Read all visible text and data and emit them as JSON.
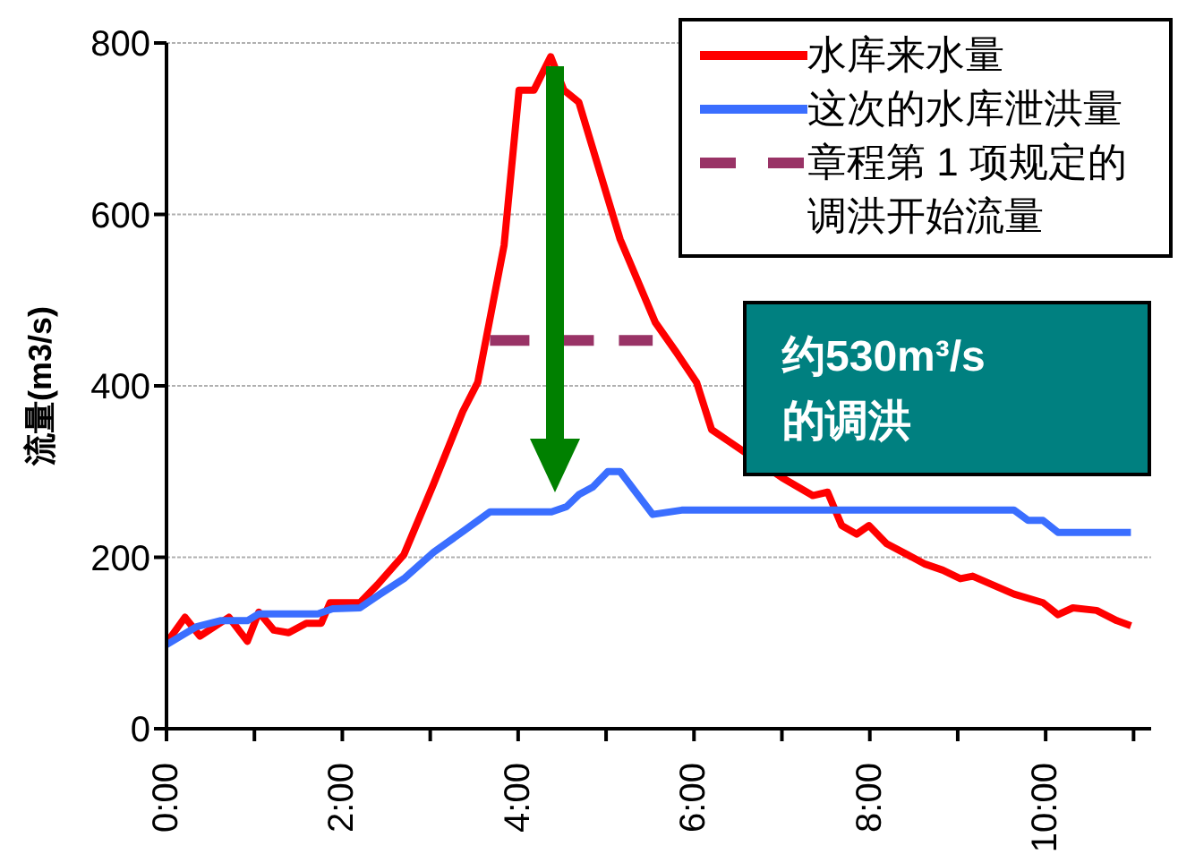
{
  "chart_data": {
    "type": "line",
    "ylabel": "流量(m3/s)",
    "xlim": [
      0,
      11.2
    ],
    "xticks": [
      {
        "value": 0,
        "label": "0:00"
      },
      {
        "value": 1,
        "label": null
      },
      {
        "value": 2,
        "label": "2:00"
      },
      {
        "value": 3,
        "label": null
      },
      {
        "value": 4,
        "label": "4:00"
      },
      {
        "value": 5,
        "label": null
      },
      {
        "value": 6,
        "label": "6:00"
      },
      {
        "value": 7,
        "label": null
      },
      {
        "value": 8,
        "label": "8:00"
      },
      {
        "value": 9,
        "label": null
      },
      {
        "value": 10,
        "label": "10:00"
      },
      {
        "value": 11,
        "label": null
      }
    ],
    "ylim": [
      0,
      800
    ],
    "yticks": [
      0,
      200,
      400,
      600,
      800
    ],
    "grid": "y",
    "legend": "top right",
    "marker": "none",
    "series": [
      {
        "name": "水库来水量",
        "color": "#ff0000",
        "x": [
          0,
          0.21,
          0.38,
          0.71,
          0.92,
          1.05,
          1.22,
          1.39,
          1.59,
          1.76,
          1.86,
          2.2,
          2.4,
          2.7,
          3.04,
          3.37,
          3.54,
          3.84,
          4.01,
          4.18,
          4.37,
          4.52,
          4.69,
          5.16,
          5.56,
          5.8,
          6.03,
          6.2,
          6.4,
          7.0,
          7.35,
          7.52,
          7.68,
          7.85,
          7.99,
          8.19,
          8.63,
          8.83,
          9.03,
          9.17,
          9.64,
          9.97,
          10.14,
          10.31,
          10.58,
          10.81,
          10.97
        ],
        "values": [
          100,
          130,
          108,
          130,
          102,
          136,
          115,
          112,
          123,
          123,
          147,
          147,
          168,
          203,
          286,
          370,
          404,
          564,
          745,
          745,
          784,
          745,
          731,
          571,
          474,
          439,
          404,
          349,
          335,
          293,
          272,
          276,
          237,
          227,
          237,
          216,
          192,
          185,
          175,
          178,
          157,
          147,
          133,
          141,
          138,
          126,
          120
        ]
      },
      {
        "name": "这次的水库泄洪量",
        "color": "#3a6eff",
        "x": [
          0,
          0.34,
          0.61,
          0.92,
          1.05,
          1.72,
          1.89,
          2.2,
          2.43,
          2.7,
          3.04,
          3.37,
          3.68,
          4.38,
          4.55,
          4.69,
          4.85,
          5.02,
          5.16,
          5.53,
          5.86,
          9.64,
          9.8,
          9.97,
          10.14,
          10.97
        ],
        "values": [
          98,
          119,
          126,
          126,
          134,
          134,
          140,
          141,
          157,
          175,
          206,
          230,
          253,
          253,
          259,
          273,
          282,
          300,
          300,
          250,
          255,
          255,
          243,
          243,
          229,
          229
        ]
      },
      {
        "name": "章程第 1 项规定的调洪开始流量",
        "color": "#993366",
        "line_style": "dashed",
        "x": [
          3.68,
          5.53
        ],
        "values": [
          453,
          453
        ]
      }
    ],
    "annotations": [
      "约530m³/s",
      "的调洪"
    ]
  }
}
